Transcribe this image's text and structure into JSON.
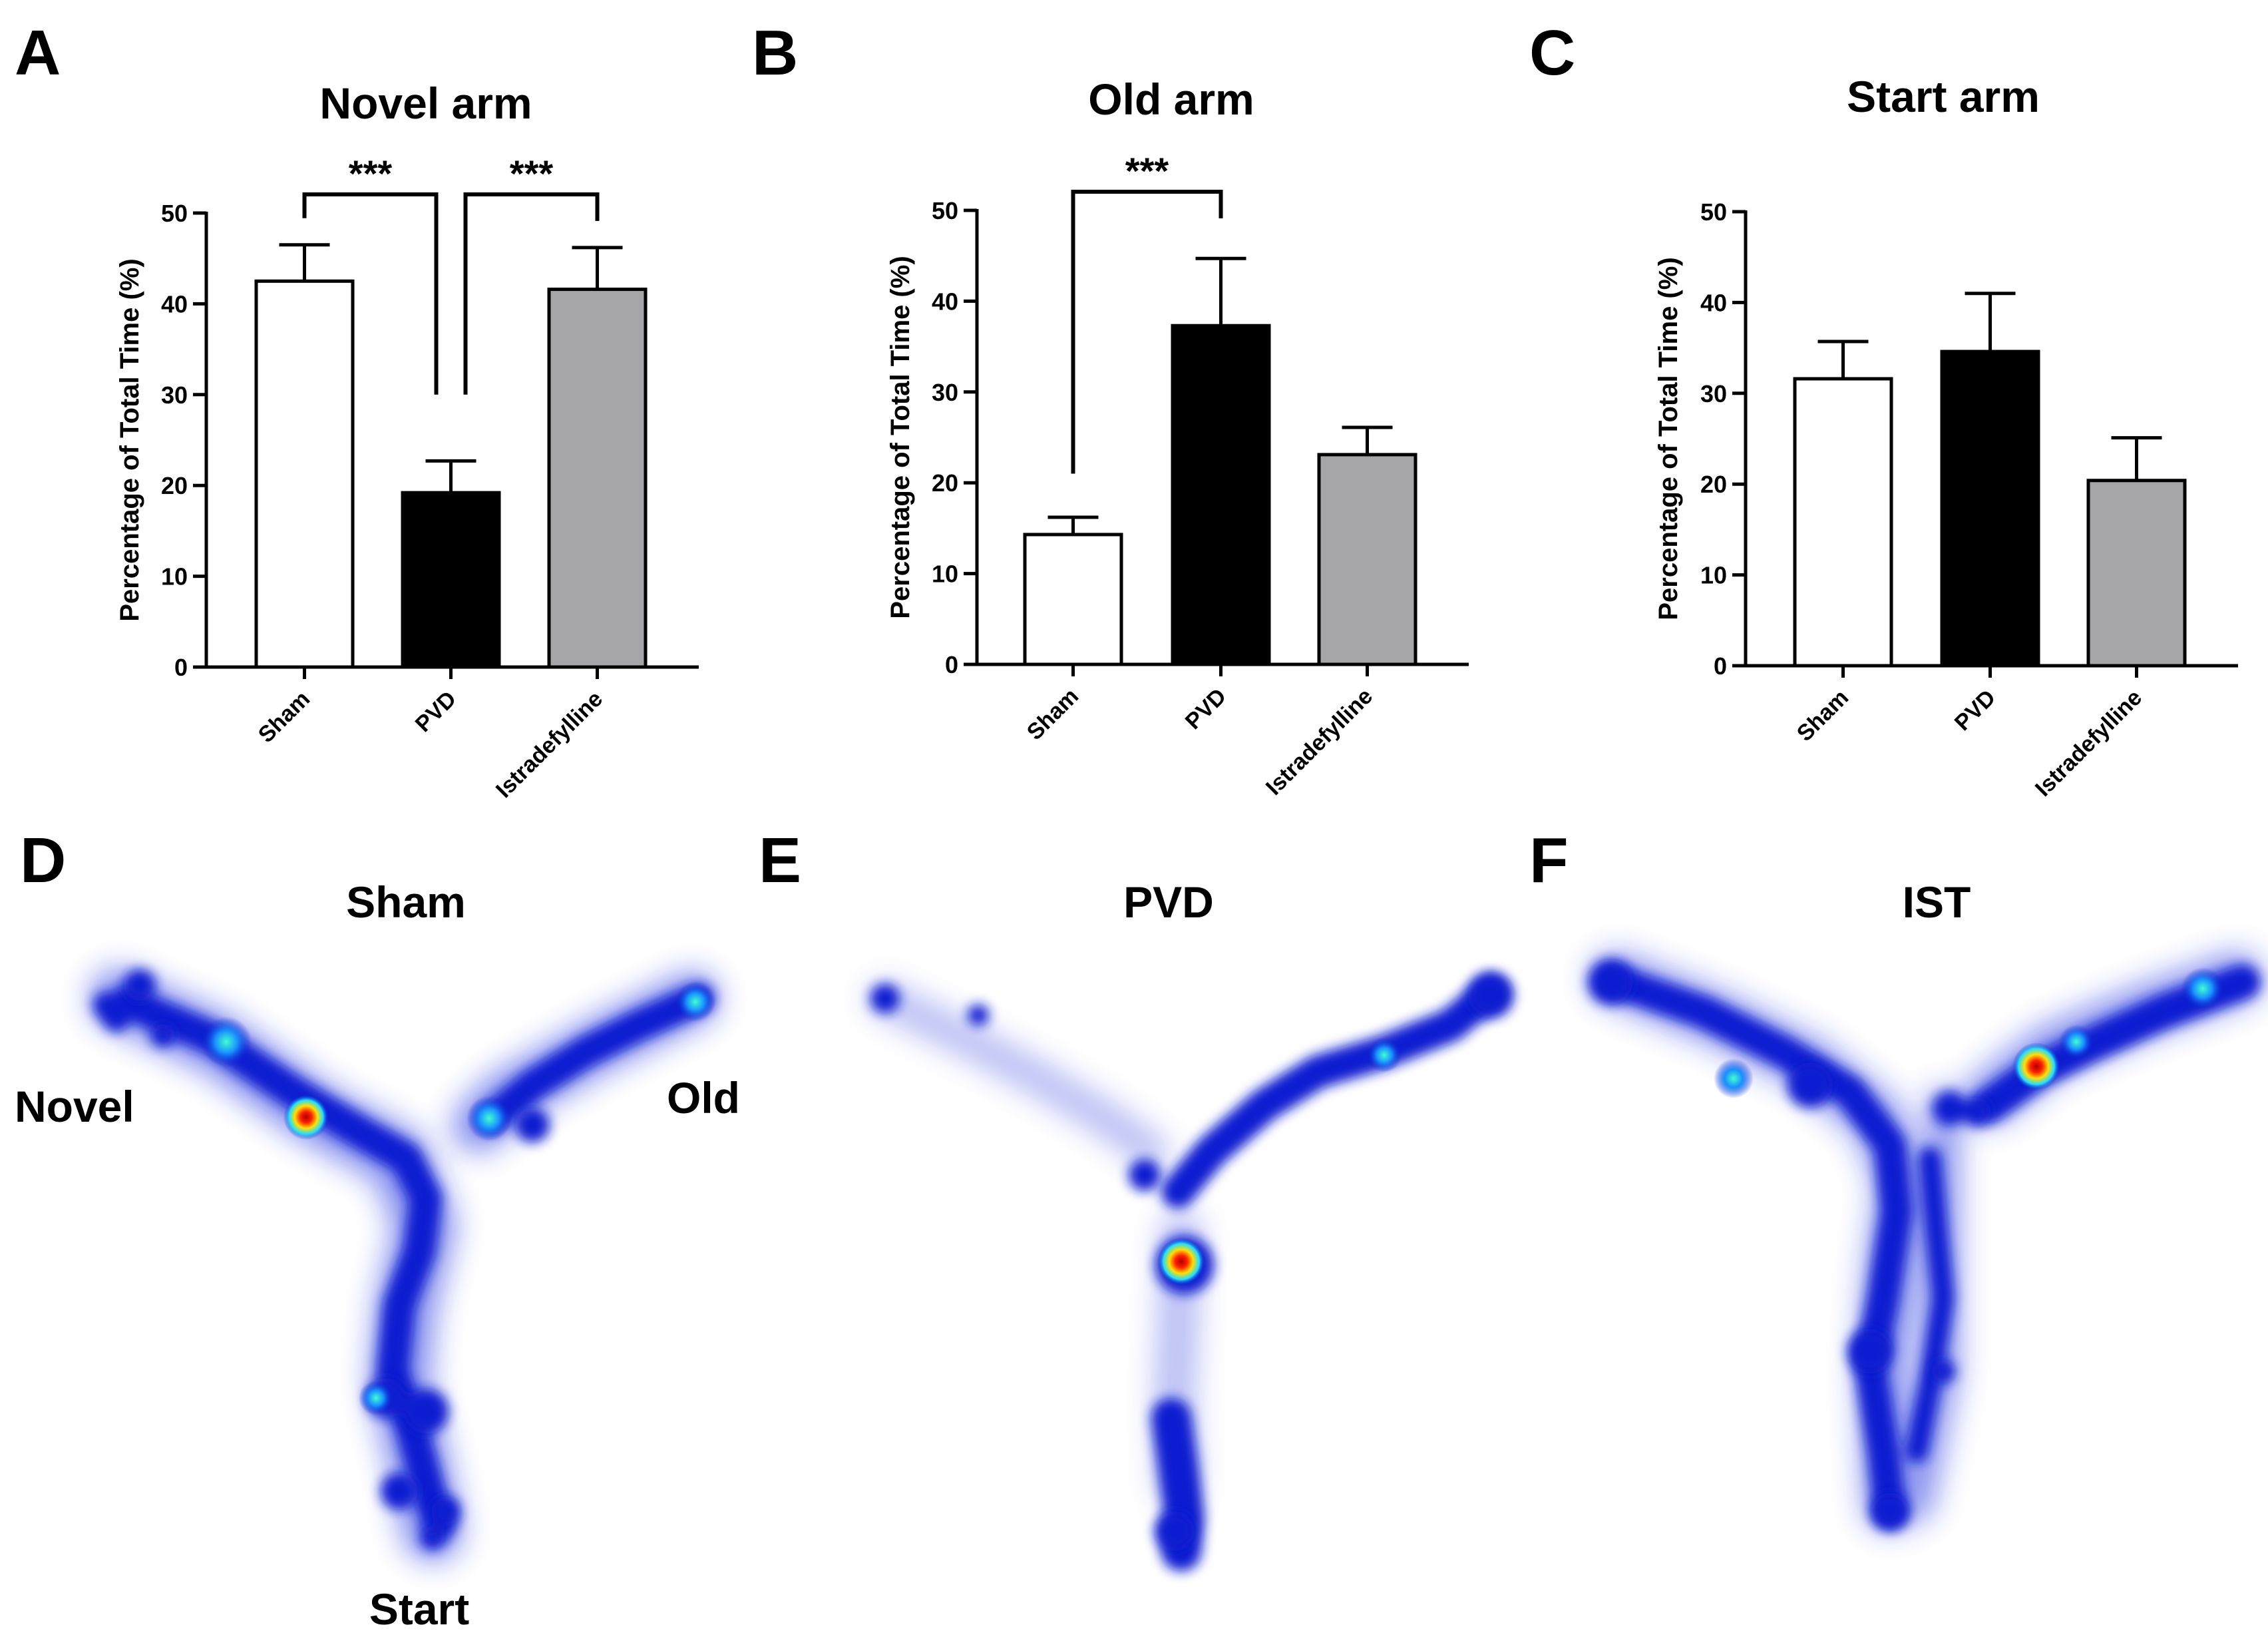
{
  "figure": {
    "panel_letters": [
      "A",
      "B",
      "C",
      "D",
      "E",
      "F"
    ],
    "heatmap_titles": [
      "Sham",
      "PVD",
      "IST"
    ],
    "arm_labels": {
      "novel": "Novel",
      "old": "Old",
      "start": "Start"
    }
  },
  "colors": {
    "sham": "#ffffff",
    "pvd": "#000000",
    "istradefylline": "#a6a6a8",
    "heat_low": "#0a1fd0",
    "heat_high": "#e01010"
  },
  "chart_data": [
    {
      "type": "bar",
      "title": "Novel arm",
      "ylabel": "Percentage of Total Time (%)",
      "xlabel": "",
      "categories": [
        "Sham",
        "PVD",
        "Istradefylline"
      ],
      "values": [
        42.5,
        19.2,
        41.6
      ],
      "errors": [
        4.0,
        3.5,
        4.6
      ],
      "ylim": [
        0,
        50
      ],
      "yticks": [
        0,
        10,
        20,
        30,
        40,
        50
      ],
      "significance": [
        {
          "from": 0,
          "to": 1,
          "label": "***"
        },
        {
          "from": 1,
          "to": 2,
          "label": "***"
        }
      ]
    },
    {
      "type": "bar",
      "title": "Old arm",
      "ylabel": "Percentage of Total Time (%)",
      "xlabel": "",
      "categories": [
        "Sham",
        "PVD",
        "Istradefylline"
      ],
      "values": [
        14.3,
        37.3,
        23.1
      ],
      "errors": [
        1.9,
        7.4,
        3.0
      ],
      "ylim": [
        0,
        50
      ],
      "yticks": [
        0,
        10,
        20,
        30,
        40,
        50
      ],
      "significance": [
        {
          "from": 0,
          "to": 1,
          "label": "***"
        }
      ]
    },
    {
      "type": "bar",
      "title": "Start arm",
      "ylabel": "Percentage of Total Time (%)",
      "xlabel": "",
      "categories": [
        "Sham",
        "PVD",
        "Istradefylline"
      ],
      "values": [
        31.6,
        34.6,
        20.4
      ],
      "errors": [
        4.1,
        6.4,
        4.7
      ],
      "ylim": [
        0,
        50
      ],
      "yticks": [
        0,
        10,
        20,
        30,
        40,
        50
      ],
      "significance": []
    }
  ]
}
